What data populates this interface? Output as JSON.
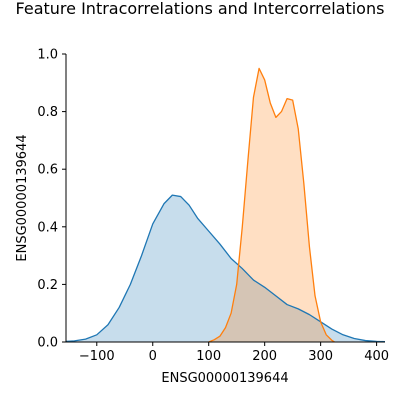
{
  "chart_data": {
    "type": "area",
    "title": "Feature Intracorrelations and Intercorrelations",
    "xlabel": "ENSG00000139644",
    "ylabel": "ENSG00000139644",
    "xlim": [
      -155,
      415
    ],
    "ylim": [
      0,
      1.0
    ],
    "x_ticks": [
      -100,
      0,
      100,
      200,
      300,
      400
    ],
    "x_tick_labels": [
      "−100",
      "0",
      "100",
      "200",
      "300",
      "400"
    ],
    "y_ticks": [
      0.0,
      0.2,
      0.4,
      0.6,
      0.8,
      1.0
    ],
    "y_tick_labels": [
      "0.0",
      "0.2",
      "0.4",
      "0.6",
      "0.8",
      "1.0"
    ],
    "grid": false,
    "legend": "none",
    "series": [
      {
        "color": "#1f77b4",
        "fill_color": "#c6dbef",
        "x": [
          -155,
          -140,
          -120,
          -100,
          -80,
          -60,
          -40,
          -20,
          0,
          20,
          35,
          50,
          65,
          80,
          100,
          120,
          140,
          160,
          180,
          200,
          220,
          240,
          260,
          280,
          300,
          320,
          340,
          360,
          380,
          400,
          415
        ],
        "y": [
          0.002,
          0.004,
          0.01,
          0.025,
          0.06,
          0.12,
          0.2,
          0.3,
          0.41,
          0.48,
          0.51,
          0.505,
          0.475,
          0.43,
          0.385,
          0.34,
          0.29,
          0.255,
          0.215,
          0.19,
          0.16,
          0.13,
          0.115,
          0.095,
          0.07,
          0.045,
          0.025,
          0.012,
          0.005,
          0.002,
          0.001
        ]
      },
      {
        "color": "#ff7f0e",
        "fill_color": "#ffd8b8",
        "x": [
          100,
          110,
          120,
          130,
          140,
          150,
          160,
          170,
          180,
          190,
          200,
          210,
          220,
          230,
          240,
          250,
          260,
          270,
          280,
          290,
          300,
          310,
          320,
          325
        ],
        "y": [
          0.0,
          0.008,
          0.02,
          0.05,
          0.1,
          0.2,
          0.4,
          0.63,
          0.85,
          0.95,
          0.91,
          0.83,
          0.78,
          0.8,
          0.845,
          0.84,
          0.74,
          0.55,
          0.33,
          0.16,
          0.07,
          0.025,
          0.006,
          0.0
        ]
      }
    ]
  }
}
